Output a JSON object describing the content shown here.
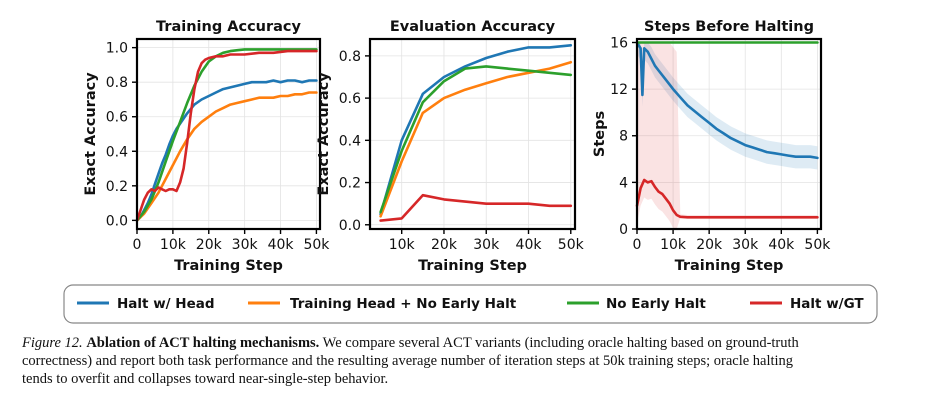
{
  "legend": [
    {
      "label": "Halt w/ Head",
      "color": "#1f77b4"
    },
    {
      "label": "Training Head + No Early Halt",
      "color": "#ff7f0e"
    },
    {
      "label": "No Early Halt",
      "color": "#2ca02c"
    },
    {
      "label": "Halt w/GT",
      "color": "#d62728"
    }
  ],
  "caption": {
    "label": "Figure 12.",
    "title": "Ablation of ACT halting mechanisms.",
    "text_line1": "We compare several ACT variants (including oracle halting based on ground-truth",
    "text_line2": "correctness) and report both task performance and the resulting average number of iteration steps at 50k training steps; oracle halting",
    "text_line3": "tends to overfit and collapses toward near-single-step behavior."
  },
  "chart_data": [
    {
      "type": "line",
      "title": "Training Accuracy",
      "xlabel": "Training Step",
      "ylabel": "Exact Accuracy",
      "xlim": [
        0,
        51000
      ],
      "ylim": [
        -0.05,
        1.05
      ],
      "xticks": [
        0,
        10000,
        20000,
        30000,
        40000,
        50000
      ],
      "xtick_labels": [
        "0",
        "10k",
        "20k",
        "30k",
        "40k",
        "50k"
      ],
      "yticks": [
        0.0,
        0.2,
        0.4,
        0.6,
        0.8,
        1.0
      ],
      "ytick_labels": [
        "0.0",
        "0.2",
        "0.4",
        "0.6",
        "0.8",
        "1.0"
      ],
      "grid": true,
      "series": [
        {
          "name": "Halt w/ Head",
          "color": "#1f77b4",
          "x": [
            0,
            1000,
            2000,
            3000,
            4000,
            5000,
            6000,
            7000,
            8000,
            9000,
            10000,
            11000,
            12000,
            13000,
            14000,
            16000,
            18000,
            20000,
            22000,
            24000,
            26000,
            28000,
            30000,
            32000,
            34000,
            36000,
            38000,
            40000,
            42000,
            44000,
            46000,
            48000,
            50000
          ],
          "y": [
            0.0,
            0.02,
            0.06,
            0.1,
            0.15,
            0.21,
            0.27,
            0.33,
            0.38,
            0.44,
            0.49,
            0.53,
            0.56,
            0.59,
            0.62,
            0.67,
            0.7,
            0.72,
            0.74,
            0.76,
            0.77,
            0.78,
            0.79,
            0.8,
            0.8,
            0.8,
            0.81,
            0.8,
            0.81,
            0.81,
            0.8,
            0.81,
            0.81
          ]
        },
        {
          "name": "Training Head + No Early Halt",
          "color": "#ff7f0e",
          "x": [
            0,
            2000,
            4000,
            6000,
            8000,
            10000,
            12000,
            14000,
            16000,
            18000,
            20000,
            22000,
            24000,
            26000,
            28000,
            30000,
            32000,
            34000,
            36000,
            38000,
            40000,
            42000,
            44000,
            46000,
            48000,
            50000
          ],
          "y": [
            0.0,
            0.04,
            0.1,
            0.16,
            0.24,
            0.32,
            0.4,
            0.47,
            0.53,
            0.57,
            0.6,
            0.63,
            0.65,
            0.67,
            0.68,
            0.69,
            0.7,
            0.71,
            0.71,
            0.71,
            0.72,
            0.72,
            0.73,
            0.73,
            0.74,
            0.74
          ]
        },
        {
          "name": "No Early Halt",
          "color": "#2ca02c",
          "x": [
            0,
            2000,
            4000,
            6000,
            8000,
            10000,
            12000,
            14000,
            16000,
            18000,
            20000,
            22000,
            24000,
            26000,
            28000,
            30000,
            34000,
            38000,
            42000,
            46000,
            50000
          ],
          "y": [
            0.0,
            0.05,
            0.12,
            0.22,
            0.34,
            0.46,
            0.57,
            0.68,
            0.78,
            0.86,
            0.92,
            0.95,
            0.97,
            0.98,
            0.985,
            0.99,
            0.99,
            0.99,
            0.99,
            0.99,
            0.99
          ]
        },
        {
          "name": "Halt w/GT",
          "color": "#d62728",
          "x": [
            0,
            1000,
            2000,
            3000,
            4000,
            5000,
            6000,
            7000,
            8000,
            9000,
            10000,
            11000,
            12000,
            13000,
            14000,
            15000,
            16000,
            17000,
            18000,
            19000,
            20000,
            22000,
            24000,
            26000,
            28000,
            30000,
            34000,
            38000,
            42000,
            46000,
            50000
          ],
          "y": [
            0.0,
            0.06,
            0.12,
            0.16,
            0.18,
            0.17,
            0.19,
            0.18,
            0.17,
            0.18,
            0.18,
            0.17,
            0.22,
            0.3,
            0.45,
            0.62,
            0.76,
            0.86,
            0.91,
            0.93,
            0.94,
            0.95,
            0.95,
            0.96,
            0.96,
            0.96,
            0.97,
            0.97,
            0.98,
            0.98,
            0.98
          ]
        }
      ]
    },
    {
      "type": "line",
      "title": "Evaluation Accuracy",
      "xlabel": "Training Step",
      "ylabel": "Exact Accuracy",
      "xlim": [
        2500,
        51000
      ],
      "ylim": [
        -0.02,
        0.88
      ],
      "xticks": [
        10000,
        20000,
        30000,
        40000,
        50000
      ],
      "xtick_labels": [
        "10k",
        "20k",
        "30k",
        "40k",
        "50k"
      ],
      "yticks": [
        0.0,
        0.2,
        0.4,
        0.6,
        0.8
      ],
      "ytick_labels": [
        "0.0",
        "0.2",
        "0.4",
        "0.6",
        "0.8"
      ],
      "grid": true,
      "series": [
        {
          "name": "Halt w/ Head",
          "color": "#1f77b4",
          "x": [
            5000,
            10000,
            15000,
            20000,
            25000,
            30000,
            35000,
            40000,
            45000,
            50000
          ],
          "y": [
            0.05,
            0.4,
            0.62,
            0.7,
            0.75,
            0.79,
            0.82,
            0.84,
            0.84,
            0.85
          ]
        },
        {
          "name": "Training Head + No Early Halt",
          "color": "#ff7f0e",
          "x": [
            5000,
            10000,
            15000,
            20000,
            25000,
            30000,
            35000,
            40000,
            45000,
            50000
          ],
          "y": [
            0.04,
            0.3,
            0.53,
            0.6,
            0.64,
            0.67,
            0.7,
            0.72,
            0.74,
            0.77
          ]
        },
        {
          "name": "No Early Halt",
          "color": "#2ca02c",
          "x": [
            5000,
            10000,
            15000,
            20000,
            25000,
            30000,
            35000,
            40000,
            45000,
            50000
          ],
          "y": [
            0.06,
            0.35,
            0.58,
            0.68,
            0.74,
            0.75,
            0.74,
            0.73,
            0.72,
            0.71
          ]
        },
        {
          "name": "Halt w/GT",
          "color": "#d62728",
          "x": [
            5000,
            10000,
            15000,
            20000,
            25000,
            30000,
            35000,
            40000,
            45000,
            50000
          ],
          "y": [
            0.02,
            0.03,
            0.14,
            0.12,
            0.11,
            0.1,
            0.1,
            0.1,
            0.09,
            0.09
          ]
        }
      ]
    },
    {
      "type": "line",
      "title": "Steps Before Halting",
      "xlabel": "Training Step",
      "ylabel": "Steps",
      "xlim": [
        0,
        51000
      ],
      "ylim": [
        0,
        16.3
      ],
      "xticks": [
        0,
        10000,
        20000,
        30000,
        40000,
        50000
      ],
      "xtick_labels": [
        "0",
        "10k",
        "20k",
        "30k",
        "40k",
        "50k"
      ],
      "yticks": [
        0,
        4,
        8,
        12,
        16
      ],
      "ytick_labels": [
        "0",
        "4",
        "8",
        "12",
        "16"
      ],
      "grid": true,
      "series": [
        {
          "name": "Halt w/ Head",
          "color": "#1f77b4",
          "x": [
            0,
            1000,
            1500,
            2000,
            3000,
            4000,
            5000,
            6000,
            8000,
            10000,
            12000,
            14000,
            16000,
            18000,
            20000,
            22000,
            24000,
            26000,
            28000,
            30000,
            32000,
            34000,
            36000,
            38000,
            40000,
            42000,
            44000,
            46000,
            48000,
            50000
          ],
          "y": [
            16,
            15.5,
            11.5,
            15.5,
            15.2,
            14.6,
            14,
            13.6,
            12.8,
            12,
            11.3,
            10.6,
            10.1,
            9.6,
            9.1,
            8.6,
            8.2,
            7.8,
            7.5,
            7.2,
            7,
            6.8,
            6.6,
            6.5,
            6.4,
            6.3,
            6.2,
            6.2,
            6.2,
            6.1
          ]
        },
        {
          "name": "No Early Halt",
          "color": "#2ca02c",
          "x": [
            0,
            50000
          ],
          "y": [
            16,
            16
          ]
        },
        {
          "name": "Halt w/GT",
          "color": "#d62728",
          "x": [
            0,
            1000,
            2000,
            3000,
            4000,
            5000,
            6000,
            7000,
            8000,
            9000,
            10000,
            11000,
            12000,
            14000,
            16000,
            20000,
            30000,
            40000,
            50000
          ],
          "y": [
            2,
            3.5,
            4.2,
            4.0,
            4.1,
            3.6,
            3.2,
            3.0,
            2.6,
            2.2,
            1.6,
            1.2,
            1.05,
            1.0,
            1.0,
            1.0,
            1.0,
            1.0,
            1.0
          ]
        }
      ]
    }
  ]
}
